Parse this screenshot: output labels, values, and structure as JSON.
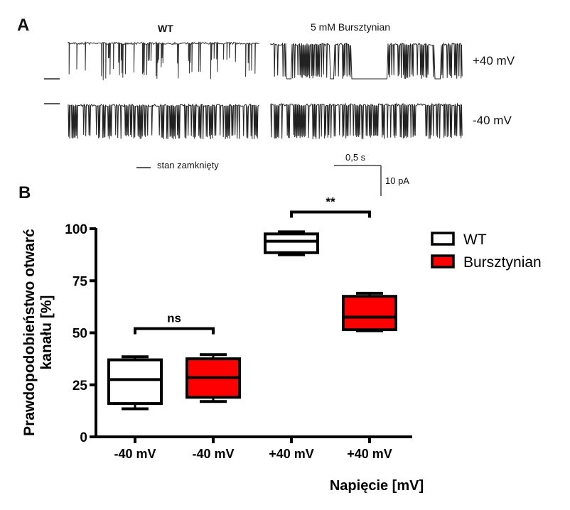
{
  "panel_a": {
    "letter": "A",
    "conditions": [
      "WT",
      "5 mM Bursztynian"
    ],
    "voltages": [
      "+40 mV",
      "-40 mV"
    ],
    "closed_state_label": "stan zamknięty",
    "scale_bar": {
      "time_label": "0,5 s",
      "current_label": "10 pA"
    }
  },
  "panel_b": {
    "letter": "B"
  },
  "chart_data": {
    "type": "box",
    "title": "",
    "xlabel": "Napięcie [mV]",
    "ylabel": "Prawdopodobieństwo otwarć kanału [%]",
    "ylabel_lines": [
      "Prawdopodobieństwo otwarć",
      "kanału [%]"
    ],
    "ylim": [
      0,
      100
    ],
    "yticks": [
      0,
      25,
      50,
      75,
      100
    ],
    "grid": false,
    "legend_position": "top-right",
    "categories": [
      "-40 mV",
      "-40 mV",
      "+40 mV",
      "+40 mV"
    ],
    "series": [
      {
        "name": "WT",
        "color": "#ffffff"
      },
      {
        "name": "Bursztynian",
        "color": "#ff0000"
      }
    ],
    "boxes": [
      {
        "category": "-40 mV",
        "series": "WT",
        "min": 13.5,
        "q1": 16,
        "median": 27.5,
        "q3": 37,
        "max": 38.5
      },
      {
        "category": "-40 mV",
        "series": "Bursztynian",
        "min": 17,
        "q1": 19,
        "median": 28.5,
        "q3": 37.5,
        "max": 39.5
      },
      {
        "category": "+40 mV",
        "series": "WT",
        "min": 87.5,
        "q1": 88.5,
        "median": 94,
        "q3": 97.5,
        "max": 98.5
      },
      {
        "category": "+40 mV",
        "series": "Bursztynian",
        "min": 51,
        "q1": 51.5,
        "median": 57.5,
        "q3": 67.5,
        "max": 69
      }
    ],
    "annotations": [
      {
        "text": "ns",
        "from": 0,
        "to": 1,
        "y": 52
      },
      {
        "text": "**",
        "from": 2,
        "to": 3,
        "y": 108
      }
    ]
  }
}
